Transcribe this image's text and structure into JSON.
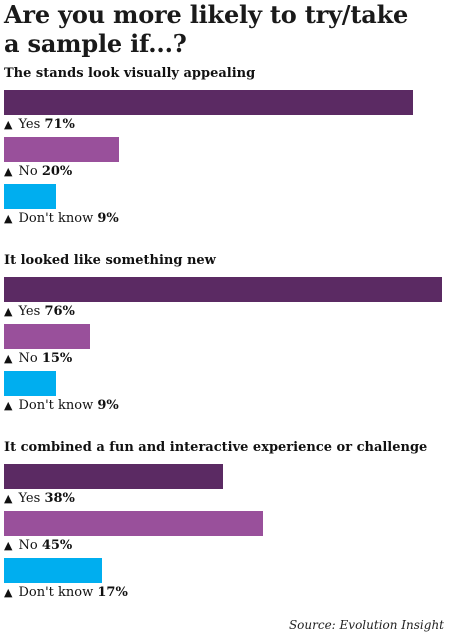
{
  "title_line1": "Are you more likely to try/take",
  "title_line2": "a sample if...?",
  "source": "Source: Evolution Insight",
  "colors": {
    "Yes": "#5b2a63",
    "No": "#99509b",
    "Don't know": "#00aeef"
  },
  "chart_data": {
    "type": "bar",
    "orientation": "horizontal",
    "title": "Are you more likely to try/take a sample if...?",
    "xlim": [
      0,
      76
    ],
    "groups": [
      {
        "question": "The stands look visually appealing",
        "items": [
          {
            "answer": "Yes",
            "value": 71,
            "value_label": "71%"
          },
          {
            "answer": "No",
            "value": 20,
            "value_label": "20%"
          },
          {
            "answer": "Don't know",
            "value": 9,
            "value_label": "9%"
          }
        ]
      },
      {
        "question": "It looked like something new",
        "items": [
          {
            "answer": "Yes",
            "value": 76,
            "value_label": "76%"
          },
          {
            "answer": "No",
            "value": 15,
            "value_label": "15%"
          },
          {
            "answer": "Don't know",
            "value": 9,
            "value_label": "9%"
          }
        ]
      },
      {
        "question": "It combined a fun and interactive experience or challenge",
        "items": [
          {
            "answer": "Yes",
            "value": 38,
            "value_label": "38%"
          },
          {
            "answer": "No",
            "value": 45,
            "value_label": "45%"
          },
          {
            "answer": "Don't know",
            "value": 17,
            "value_label": "17%"
          }
        ]
      }
    ]
  }
}
